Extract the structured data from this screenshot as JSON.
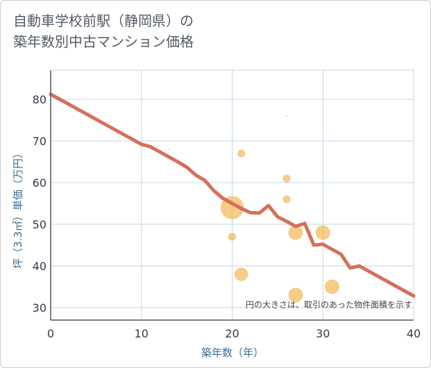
{
  "chart_data": {
    "type": "scatter",
    "title_line1": "自動車学校前駅（静岡県）の",
    "title_line2": "築年数別中古マンション価格",
    "xlabel": "築年数（年）",
    "ylabel": "坪（3.3㎡）単価（万円）",
    "annotation": "円の大きさは、取引のあった物件面積を示す",
    "xlim": [
      0,
      40
    ],
    "ylim": [
      27,
      87
    ],
    "x_ticks": [
      "0",
      "10",
      "20",
      "30",
      "40"
    ],
    "y_ticks": [
      "30",
      "40",
      "50",
      "60",
      "70",
      "80"
    ],
    "grid": true,
    "colors": {
      "trend": "#d4705a",
      "bubble": "#f0b64e",
      "grid": "#c5d6e6",
      "axis": "#555555"
    },
    "series": [
      {
        "kind": "bubbles",
        "points": [
          {
            "x": 13,
            "y": 68,
            "size": 0.5
          },
          {
            "x": 20,
            "y": 54,
            "size": 12
          },
          {
            "x": 20,
            "y": 47,
            "size": 4
          },
          {
            "x": 21,
            "y": 67,
            "size": 4
          },
          {
            "x": 21,
            "y": 38,
            "size": 7
          },
          {
            "x": 26,
            "y": 76,
            "size": 0.5
          },
          {
            "x": 26,
            "y": 61,
            "size": 4
          },
          {
            "x": 26,
            "y": 56,
            "size": 4
          },
          {
            "x": 27,
            "y": 48,
            "size": 7.5
          },
          {
            "x": 27,
            "y": 33,
            "size": 7.5
          },
          {
            "x": 30,
            "y": 48,
            "size": 7.5
          },
          {
            "x": 31,
            "y": 35,
            "size": 7.5
          }
        ]
      },
      {
        "kind": "trend",
        "x": [
          0,
          1,
          2,
          3,
          4,
          5,
          6,
          7,
          8,
          9,
          10,
          11,
          12,
          13,
          14,
          15,
          16,
          17,
          18,
          19,
          20,
          21,
          22,
          23,
          24,
          25,
          26,
          27,
          28,
          29,
          30,
          31,
          32,
          33,
          34,
          35,
          36,
          37,
          38,
          39,
          40
        ],
        "y": [
          81.2,
          80.0,
          78.8,
          77.6,
          76.4,
          75.2,
          74.0,
          72.8,
          71.6,
          70.4,
          69.2,
          68.6,
          67.4,
          66.2,
          65.0,
          63.7,
          61.8,
          60.5,
          58.0,
          56.2,
          55.0,
          53.8,
          52.8,
          52.7,
          54.5,
          51.8,
          50.7,
          49.5,
          50.2,
          45.0,
          45.2,
          44.0,
          42.8,
          39.5,
          40.0,
          38.8,
          37.6,
          36.4,
          35.2,
          34.0,
          32.8
        ]
      }
    ]
  }
}
